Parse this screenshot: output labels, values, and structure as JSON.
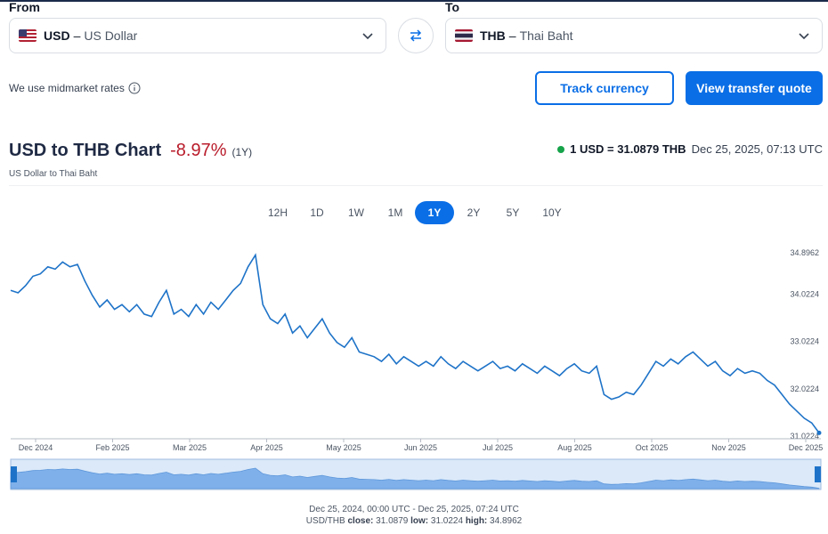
{
  "converter": {
    "from_label": "From",
    "to_label": "To",
    "from": {
      "code": "USD",
      "dash": "–",
      "name": "US Dollar"
    },
    "to": {
      "code": "THB",
      "dash": "–",
      "name": "Thai Baht"
    },
    "midmarket_text": "We use midmarket rates",
    "track_label": "Track currency",
    "quote_label": "View transfer quote"
  },
  "header": {
    "title": "USD to THB Chart",
    "change": "-8.97%",
    "period": "(1Y)",
    "subtitle": "US Dollar to Thai Baht",
    "rate": "1 USD = 31.0879 THB",
    "timestamp": "Dec 25, 2025, 07:13 UTC"
  },
  "ranges": [
    {
      "label": "12H",
      "active": false
    },
    {
      "label": "1D",
      "active": false
    },
    {
      "label": "1W",
      "active": false
    },
    {
      "label": "1M",
      "active": false
    },
    {
      "label": "1Y",
      "active": true
    },
    {
      "label": "2Y",
      "active": false
    },
    {
      "label": "5Y",
      "active": false
    },
    {
      "label": "10Y",
      "active": false
    }
  ],
  "colors": {
    "accent": "#0a6ee6",
    "line": "#1e73c8",
    "negative": "#b91c2b",
    "live_dot": "#16a34a"
  },
  "chart_data": {
    "type": "line",
    "series": [
      {
        "values": [
          34.1,
          34.05,
          34.2,
          34.4,
          34.45,
          34.6,
          34.55,
          34.7,
          34.6,
          34.65,
          34.3,
          34.0,
          33.75,
          33.9,
          33.7,
          33.8,
          33.65,
          33.8,
          33.6,
          33.55,
          33.85,
          34.1,
          33.6,
          33.7,
          33.55,
          33.8,
          33.6,
          33.85,
          33.7,
          33.9,
          34.1,
          34.25,
          34.6,
          34.85,
          33.8,
          33.5,
          33.4,
          33.6,
          33.2,
          33.35,
          33.1,
          33.3,
          33.5,
          33.2,
          33.0,
          32.9,
          33.1,
          32.8,
          32.75,
          32.7,
          32.6,
          32.75,
          32.55,
          32.7,
          32.6,
          32.5,
          32.6,
          32.5,
          32.7,
          32.55,
          32.45,
          32.6,
          32.5,
          32.4,
          32.5,
          32.6,
          32.45,
          32.5,
          32.4,
          32.55,
          32.45,
          32.35,
          32.5,
          32.4,
          32.3,
          32.45,
          32.55,
          32.4,
          32.35,
          32.5,
          31.9,
          31.8,
          31.85,
          31.95,
          31.9,
          32.1,
          32.35,
          32.6,
          32.5,
          32.65,
          32.55,
          32.7,
          32.8,
          32.65,
          32.5,
          32.6,
          32.4,
          32.3,
          32.45,
          32.35,
          32.4,
          32.35,
          32.2,
          32.1,
          31.9,
          31.7,
          31.55,
          31.4,
          31.3,
          31.09
        ]
      }
    ],
    "x_ticks": [
      "Dec 2024",
      "Feb 2025",
      "Mar 2025",
      "Apr 2025",
      "May 2025",
      "Jun 2025",
      "Jul 2025",
      "Aug 2025",
      "Oct 2025",
      "Nov 2025",
      "Dec 2025"
    ],
    "y_ticks": [
      "34.8962",
      "34.0224",
      "33.0224",
      "32.0224",
      "31.0224"
    ],
    "ylim": [
      31.0224,
      34.8962
    ],
    "grid": false,
    "range_text": "Dec 25, 2024, 00:00 UTC - Dec 25, 2025, 07:24 UTC",
    "stats": {
      "pair": "USD/THB",
      "close_label": "close:",
      "close": "31.0879",
      "low_label": "low:",
      "low": "31.0224",
      "high_label": "high:",
      "high": "34.8962"
    }
  }
}
